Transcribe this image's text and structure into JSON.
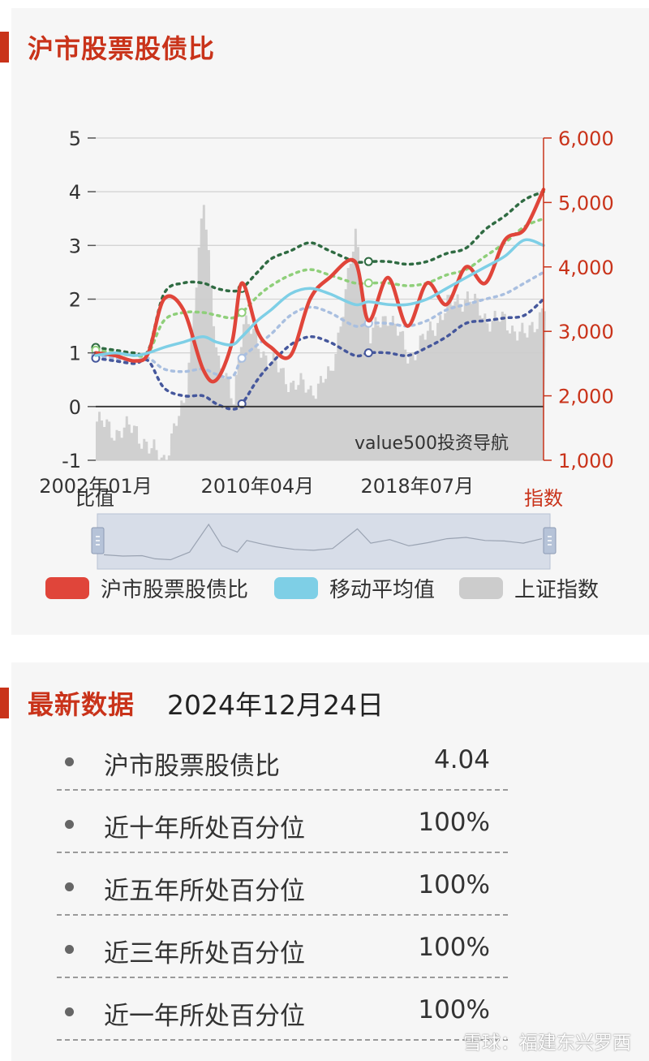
{
  "chart_panel": {
    "title": "沪市股票股债比",
    "left_unit": "比值",
    "right_unit": "指数",
    "watermark": "value500投资导航"
  },
  "legend": [
    {
      "label": "沪市股票股债比",
      "color": "#e0453a"
    },
    {
      "label": "移动平均值",
      "color": "#7ecfe6"
    },
    {
      "label": "上证指数",
      "color": "#cccccc"
    }
  ],
  "chart_data": {
    "type": "line",
    "title": "沪市股票股债比",
    "x_tick_labels": [
      "2002年01月",
      "2010年04月",
      "2018年07月"
    ],
    "y_left": {
      "label": "比值",
      "range": [
        -1,
        5
      ],
      "ticks": [
        5,
        4,
        3,
        2,
        1,
        0,
        -1
      ]
    },
    "y_right": {
      "label": "指数",
      "range": [
        1000,
        6000
      ],
      "ticks": [
        "6,000",
        "5,000",
        "4,000",
        "3,000",
        "2,000",
        "1,000"
      ]
    },
    "x": [
      2002.0,
      2003.0,
      2004.0,
      2004.7,
      2005.5,
      2006.5,
      2007.5,
      2008.2,
      2009.0,
      2009.5,
      2010.3,
      2011.0,
      2012.0,
      2013.0,
      2014.0,
      2015.3,
      2016.0,
      2017.0,
      2018.0,
      2019.0,
      2020.0,
      2021.0,
      2022.0,
      2023.0,
      2024.0,
      2024.98
    ],
    "series": [
      {
        "name": "沪市股票股债比",
        "color": "#e0453a",
        "axis": "left",
        "values": [
          1.0,
          0.95,
          0.85,
          1.0,
          2.0,
          1.8,
          0.7,
          0.5,
          1.2,
          2.3,
          1.4,
          1.1,
          0.95,
          2.0,
          2.4,
          2.7,
          1.6,
          2.4,
          1.5,
          2.3,
          1.9,
          2.6,
          2.3,
          3.1,
          3.3,
          4.04
        ]
      },
      {
        "name": "移动平均值",
        "color": "#7ecfe6",
        "axis": "left",
        "values": [
          0.95,
          1.0,
          0.95,
          1.0,
          1.1,
          1.2,
          1.3,
          1.2,
          1.15,
          1.3,
          1.6,
          1.8,
          2.1,
          2.2,
          2.1,
          1.9,
          1.95,
          1.9,
          1.9,
          2.0,
          2.2,
          2.4,
          2.6,
          2.8,
          3.1,
          3.0
        ]
      },
      {
        "name": "upper_2sd",
        "color": "#2f6b42",
        "axis": "left",
        "dashed": true,
        "values": [
          1.1,
          1.05,
          1.0,
          1.05,
          2.1,
          2.3,
          2.3,
          2.2,
          2.15,
          2.2,
          2.5,
          2.75,
          2.9,
          3.05,
          2.9,
          2.7,
          2.7,
          2.7,
          2.65,
          2.7,
          2.85,
          2.95,
          3.3,
          3.55,
          3.85,
          4.0
        ]
      },
      {
        "name": "upper_1sd",
        "color": "#8fcf7a",
        "axis": "left",
        "dashed": true,
        "values": [
          1.05,
          1.0,
          0.95,
          1.0,
          1.6,
          1.75,
          1.75,
          1.7,
          1.65,
          1.75,
          2.05,
          2.25,
          2.45,
          2.55,
          2.45,
          2.3,
          2.3,
          2.3,
          2.25,
          2.3,
          2.45,
          2.55,
          2.8,
          3.05,
          3.35,
          3.5
        ]
      },
      {
        "name": "lower_1sd",
        "color": "#a9bfe0",
        "axis": "left",
        "dashed": true,
        "values": [
          0.95,
          0.9,
          0.85,
          0.9,
          0.7,
          0.65,
          0.7,
          0.6,
          0.55,
          0.9,
          1.15,
          1.35,
          1.7,
          1.85,
          1.75,
          1.5,
          1.55,
          1.55,
          1.5,
          1.6,
          1.8,
          1.9,
          2.0,
          2.1,
          2.3,
          2.5
        ]
      },
      {
        "name": "lower_2sd",
        "color": "#45579c",
        "axis": "left",
        "dashed": true,
        "values": [
          0.9,
          0.85,
          0.8,
          0.85,
          0.35,
          0.2,
          0.2,
          0.05,
          -0.05,
          0.05,
          0.5,
          0.8,
          1.15,
          1.3,
          1.2,
          0.95,
          1.0,
          1.0,
          0.95,
          1.1,
          1.3,
          1.55,
          1.6,
          1.65,
          1.7,
          2.0
        ]
      },
      {
        "name": "上证指数",
        "color": "#cccccc",
        "axis": "right",
        "type": "area",
        "values": [
          1600,
          1450,
          1500,
          1150,
          1050,
          1900,
          5000,
          2600,
          1900,
          3200,
          2800,
          2500,
          2200,
          2100,
          2300,
          4500,
          2900,
          3300,
          2600,
          2950,
          3400,
          3550,
          3200,
          3150,
          2900,
          3400
        ]
      }
    ]
  },
  "latest": {
    "title": "最新数据",
    "date": "2024年12月24日",
    "rows": [
      {
        "label": "沪市股票股债比",
        "value": "4.04"
      },
      {
        "label": "近十年所处百分位",
        "value": "100%"
      },
      {
        "label": "近五年所处百分位",
        "value": "100%"
      },
      {
        "label": "近三年所处百分位",
        "value": "100%"
      },
      {
        "label": "近一年所处百分位",
        "value": "100%"
      }
    ]
  },
  "watermark": "雪球：福建东兴罗西"
}
